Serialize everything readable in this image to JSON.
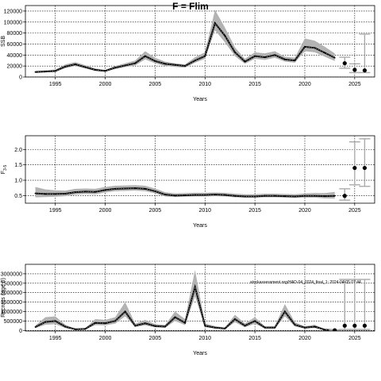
{
  "chart_data": [
    {
      "type": "line",
      "title": "F = Flim",
      "xlabel": "Years",
      "ylabel": "SSB",
      "xlim": [
        1992,
        2027
      ],
      "ylim": [
        0,
        130000
      ],
      "xticks": [
        1995,
        2000,
        2005,
        2010,
        2015,
        2020,
        2025
      ],
      "yticks": [
        0,
        20000,
        40000,
        60000,
        80000,
        100000,
        120000
      ],
      "ytick_labels": [
        "0",
        "20000",
        "40000",
        "60000",
        "80000",
        "100000",
        "120000"
      ],
      "grid": true,
      "x": [
        1993,
        1994,
        1995,
        1996,
        1997,
        1998,
        1999,
        2000,
        2001,
        2002,
        2003,
        2004,
        2005,
        2006,
        2007,
        2008,
        2009,
        2010,
        2011,
        2012,
        2013,
        2014,
        2015,
        2016,
        2017,
        2018,
        2019,
        2020,
        2021,
        2022,
        2023
      ],
      "estimate": [
        9000,
        10000,
        11000,
        19000,
        23000,
        18000,
        13000,
        11000,
        17000,
        21000,
        25000,
        38000,
        29000,
        24000,
        22000,
        20000,
        30000,
        38000,
        98000,
        75000,
        45000,
        28000,
        38000,
        36000,
        40000,
        32000,
        30000,
        55000,
        53000,
        44000,
        35000
      ],
      "lower": [
        7500,
        8500,
        9000,
        16000,
        20000,
        15500,
        11000,
        9500,
        14500,
        18000,
        21000,
        32000,
        25000,
        20000,
        18500,
        17000,
        26000,
        33000,
        85000,
        63000,
        38000,
        24000,
        33000,
        31000,
        35000,
        28000,
        26000,
        47000,
        45000,
        37000,
        29000
      ],
      "upper": [
        11000,
        12000,
        13500,
        23000,
        27000,
        21500,
        15500,
        13000,
        20000,
        25000,
        30000,
        47000,
        35000,
        28000,
        25000,
        23000,
        36000,
        45000,
        122000,
        90000,
        54000,
        33000,
        45000,
        43000,
        47000,
        37000,
        35000,
        70000,
        66000,
        55000,
        43000
      ],
      "forecast": [
        {
          "x": 2024,
          "y": 25000,
          "lower": 16000,
          "upper": 36000
        },
        {
          "x": 2025,
          "y": 13000,
          "lower": 8000,
          "upper": 24000
        },
        {
          "x": 2026,
          "y": 12000,
          "lower": 8000,
          "upper": 78000
        }
      ]
    },
    {
      "type": "line",
      "xlabel": "Years",
      "ylabel": "F",
      "ylabel_sub": "3-5",
      "xlim": [
        1992,
        2027
      ],
      "ylim": [
        0.25,
        2.45
      ],
      "xticks": [
        1995,
        2000,
        2005,
        2010,
        2015,
        2020,
        2025
      ],
      "yticks": [
        0.5,
        1.0,
        1.5,
        2.0
      ],
      "ytick_labels": [
        "0.5",
        "1.0",
        "1.5",
        "2.0"
      ],
      "grid": true,
      "x": [
        1993,
        1994,
        1995,
        1996,
        1997,
        1998,
        1999,
        2000,
        2001,
        2002,
        2003,
        2004,
        2005,
        2006,
        2007,
        2008,
        2009,
        2010,
        2011,
        2012,
        2013,
        2014,
        2015,
        2016,
        2017,
        2018,
        2019,
        2020,
        2021,
        2022,
        2023
      ],
      "estimate": [
        0.57,
        0.55,
        0.55,
        0.56,
        0.61,
        0.63,
        0.62,
        0.68,
        0.72,
        0.73,
        0.74,
        0.72,
        0.64,
        0.53,
        0.5,
        0.51,
        0.52,
        0.52,
        0.53,
        0.52,
        0.49,
        0.47,
        0.47,
        0.49,
        0.49,
        0.48,
        0.47,
        0.49,
        0.49,
        0.48,
        0.49
      ],
      "lower": [
        0.44,
        0.45,
        0.46,
        0.48,
        0.53,
        0.55,
        0.54,
        0.6,
        0.64,
        0.65,
        0.66,
        0.64,
        0.57,
        0.47,
        0.45,
        0.46,
        0.47,
        0.47,
        0.48,
        0.47,
        0.44,
        0.43,
        0.43,
        0.44,
        0.44,
        0.43,
        0.42,
        0.43,
        0.43,
        0.41,
        0.4
      ],
      "upper": [
        0.78,
        0.7,
        0.67,
        0.66,
        0.72,
        0.73,
        0.72,
        0.78,
        0.82,
        0.83,
        0.84,
        0.82,
        0.73,
        0.61,
        0.57,
        0.58,
        0.59,
        0.59,
        0.6,
        0.59,
        0.56,
        0.54,
        0.54,
        0.56,
        0.56,
        0.55,
        0.54,
        0.57,
        0.58,
        0.58,
        0.62
      ],
      "forecast": [
        {
          "x": 2024,
          "y": 0.49,
          "lower": 0.35,
          "upper": 0.72
        },
        {
          "x": 2025,
          "y": 1.4,
          "lower": 0.85,
          "upper": 2.25
        },
        {
          "x": 2026,
          "y": 1.4,
          "lower": 0.8,
          "upper": 2.35
        }
      ]
    },
    {
      "type": "line",
      "xlabel": "Years",
      "ylabel": "Recruits (age 0)",
      "xlim": [
        1992,
        2027
      ],
      "ylim": [
        -30000,
        3500000
      ],
      "xticks": [
        1995,
        2000,
        2005,
        2010,
        2015,
        2020,
        2025
      ],
      "yticks": [
        0,
        500000,
        1000000,
        1500000,
        2000000,
        2500000,
        3000000
      ],
      "ytick_labels": [
        "0",
        "500000",
        "1000000",
        "1500000",
        "2000000",
        "2500000",
        "3000000"
      ],
      "grid": true,
      "annotation": "stockassessment.org/HAD-04_2024_final_1: 2024-04-05 07:44",
      "x": [
        1993,
        1994,
        1995,
        1996,
        1997,
        1998,
        1999,
        2000,
        2001,
        2002,
        2003,
        2004,
        2005,
        2006,
        2007,
        2008,
        2009,
        2010,
        2011,
        2012,
        2013,
        2014,
        2015,
        2016,
        2017,
        2018,
        2019,
        2020,
        2021,
        2022,
        2023
      ],
      "estimate": [
        180000,
        450000,
        500000,
        200000,
        60000,
        80000,
        400000,
        380000,
        500000,
        1000000,
        250000,
        380000,
        230000,
        200000,
        700000,
        400000,
        2300000,
        250000,
        150000,
        100000,
        600000,
        250000,
        500000,
        150000,
        150000,
        1000000,
        300000,
        150000,
        200000,
        40000,
        10000
      ],
      "lower": [
        120000,
        300000,
        330000,
        130000,
        40000,
        55000,
        280000,
        270000,
        360000,
        750000,
        180000,
        270000,
        160000,
        140000,
        500000,
        280000,
        1800000,
        170000,
        100000,
        65000,
        430000,
        170000,
        350000,
        100000,
        100000,
        750000,
        210000,
        100000,
        130000,
        20000,
        0
      ],
      "upper": [
        260000,
        700000,
        750000,
        300000,
        90000,
        120000,
        600000,
        560000,
        700000,
        1500000,
        360000,
        560000,
        330000,
        290000,
        1000000,
        600000,
        3200000,
        370000,
        230000,
        150000,
        830000,
        370000,
        700000,
        220000,
        230000,
        1400000,
        430000,
        220000,
        300000,
        70000,
        30000
      ],
      "forecast": [
        {
          "x": 2023,
          "y": 10000,
          "lower": 0,
          "upper": 30000
        },
        {
          "x": 2024,
          "y": 250000,
          "lower": 50000,
          "upper": 2700000
        },
        {
          "x": 2025,
          "y": 250000,
          "lower": 50000,
          "upper": 2700000
        },
        {
          "x": 2026,
          "y": 250000,
          "lower": 50000,
          "upper": 2700000
        }
      ]
    }
  ]
}
